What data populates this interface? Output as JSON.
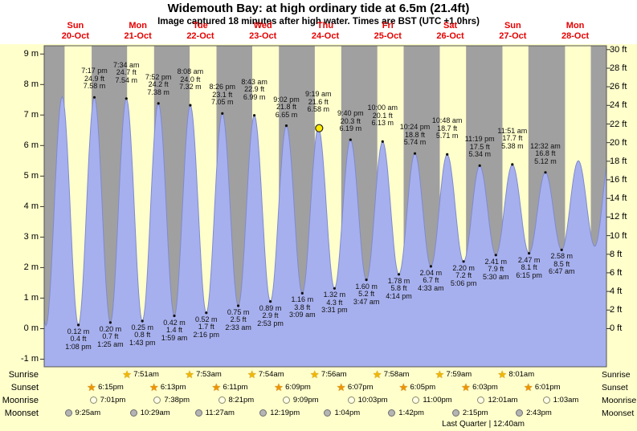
{
  "header": {
    "title": "Widemouth Bay: at high  ordinary tide at 6.5m (21.4ft)",
    "subtitle": "Image captured 18 minutes after high water. Times are BST (UTC +1.0hrs)"
  },
  "chart_data": {
    "type": "area",
    "title": "Widemouth Bay: at high  ordinary tide at 6.5m (21.4ft)",
    "subtitle": "Image captured 18 minutes after high water. Times are BST (UTC +1.0hrs)",
    "days": [
      {
        "name": "Sun",
        "date": "20-Oct"
      },
      {
        "name": "Mon",
        "date": "21-Oct"
      },
      {
        "name": "Tue",
        "date": "22-Oct"
      },
      {
        "name": "Wed",
        "date": "23-Oct"
      },
      {
        "name": "Thu",
        "date": "24-Oct"
      },
      {
        "name": "Fri",
        "date": "25-Oct"
      },
      {
        "name": "Sat",
        "date": "26-Oct"
      },
      {
        "name": "Sun",
        "date": "27-Oct"
      },
      {
        "name": "Mon",
        "date": "28-Oct"
      }
    ],
    "y_axis_left": {
      "unit": "m",
      "ticks": [
        9,
        8,
        7,
        6,
        5,
        4,
        3,
        2,
        1,
        0,
        -1
      ]
    },
    "y_axis_right": {
      "unit": "ft",
      "ticks": [
        30,
        28,
        26,
        24,
        22,
        20,
        18,
        16,
        14,
        12,
        10,
        8,
        6,
        4,
        2,
        0
      ]
    },
    "high_tides": [
      {
        "day": 0,
        "time": "7:17 pm",
        "ft": 24.9,
        "m": 7.58
      },
      {
        "day": 1,
        "time": "7:34 am",
        "ft": 24.7,
        "m": 7.54
      },
      {
        "day": 1,
        "time": "7:52 pm",
        "ft": 24.2,
        "m": 7.38
      },
      {
        "day": 2,
        "time": "8:08 am",
        "ft": 24.0,
        "m": 7.32
      },
      {
        "day": 2,
        "time": "8:26 pm",
        "ft": 23.1,
        "m": 7.05
      },
      {
        "day": 3,
        "time": "8:43 am",
        "ft": 22.9,
        "m": 6.99
      },
      {
        "day": 3,
        "time": "9:02 pm",
        "ft": 21.8,
        "m": 6.65
      },
      {
        "day": 4,
        "time": "9:19 am",
        "ft": 21.6,
        "m": 6.58
      },
      {
        "day": 4,
        "time": "9:40 pm",
        "ft": 20.3,
        "m": 6.19
      },
      {
        "day": 5,
        "time": "10:00 am",
        "ft": 20.1,
        "m": 6.13
      },
      {
        "day": 5,
        "time": "10:24 pm",
        "ft": 18.8,
        "m": 5.74
      },
      {
        "day": 6,
        "time": "10:48 am",
        "ft": 18.7,
        "m": 5.71
      },
      {
        "day": 6,
        "time": "11:19 pm",
        "ft": 17.5,
        "m": 5.34
      },
      {
        "day": 7,
        "time": "11:51 am",
        "ft": 17.7,
        "m": 5.38
      },
      {
        "day": 8,
        "time": "12:32 am",
        "ft": 16.8,
        "m": 5.12
      }
    ],
    "low_tides": [
      {
        "day": 0,
        "time": "1:08 pm",
        "ft": 0.4,
        "m": 0.12
      },
      {
        "day": 1,
        "time": "1:25 am",
        "ft": 0.7,
        "m": 0.2
      },
      {
        "day": 1,
        "time": "1:43 pm",
        "ft": 0.8,
        "m": 0.25
      },
      {
        "day": 2,
        "time": "1:59 am",
        "ft": 1.4,
        "m": 0.42
      },
      {
        "day": 2,
        "time": "2:16 pm",
        "ft": 1.7,
        "m": 0.52
      },
      {
        "day": 3,
        "time": "2:33 am",
        "ft": 2.5,
        "m": 0.75
      },
      {
        "day": 3,
        "time": "2:53 pm",
        "ft": 2.9,
        "m": 0.89
      },
      {
        "day": 4,
        "time": "3:09 am",
        "ft": 3.8,
        "m": 1.16
      },
      {
        "day": 4,
        "time": "3:31 pm",
        "ft": 4.3,
        "m": 1.32
      },
      {
        "day": 5,
        "time": "3:47 am",
        "ft": 5.2,
        "m": 1.6
      },
      {
        "day": 5,
        "time": "4:14 pm",
        "ft": 5.8,
        "m": 1.78
      },
      {
        "day": 6,
        "time": "4:33 am",
        "ft": 6.7,
        "m": 2.04
      },
      {
        "day": 6,
        "time": "5:06 pm",
        "ft": 7.2,
        "m": 2.2
      },
      {
        "day": 7,
        "time": "5:30 am",
        "ft": 7.9,
        "m": 2.41
      },
      {
        "day": 7,
        "time": "6:15 pm",
        "ft": 8.1,
        "m": 2.47
      },
      {
        "day": 8,
        "time": "6:47 am",
        "ft": 8.5,
        "m": 2.58
      }
    ],
    "current_marker": {
      "day": 4,
      "time": "9:37 am",
      "height_m": 6.57
    },
    "night_bands": [
      [
        0,
        7.83
      ],
      [
        18.25,
        31.85
      ],
      [
        42.22,
        55.88
      ],
      [
        66.18,
        79.9
      ],
      [
        90.15,
        103.93
      ],
      [
        114.12,
        127.97
      ],
      [
        138.08,
        151.98
      ],
      [
        162.05,
        176.02
      ],
      [
        186.02,
        200.08
      ],
      [
        209.97,
        216
      ]
    ],
    "curve_edges": [
      {
        "t": -5.4,
        "m": 7.6
      },
      {
        "t": 0.67,
        "m": 0.1
      },
      {
        "t": 6.92,
        "m": 7.6
      },
      {
        "t": 205.2,
        "m": 5.5
      },
      {
        "t": 211.5,
        "m": 2.7
      },
      {
        "t": 217.7,
        "m": 5.9
      }
    ],
    "colors": {
      "day_bg": "#ffffcc",
      "night_bg": "#a0a0a0",
      "tide_fill": "#a7b0ee",
      "tide_edge": "#7f8ad0",
      "day_label": "#e60000",
      "marker": "#ffe800",
      "frame": "#555555"
    }
  },
  "astro": {
    "rows": [
      {
        "label": "Sunrise",
        "icon": "sunrise-star",
        "color": "#f2b700",
        "entries": [
          {
            "day": 1,
            "time": "7:51am"
          },
          {
            "day": 2,
            "time": "7:53am"
          },
          {
            "day": 3,
            "time": "7:54am"
          },
          {
            "day": 4,
            "time": "7:56am"
          },
          {
            "day": 5,
            "time": "7:58am"
          },
          {
            "day": 6,
            "time": "7:59am"
          },
          {
            "day": 7,
            "time": "8:01am"
          }
        ]
      },
      {
        "label": "Sunset",
        "icon": "sunset-star",
        "color": "#ef9400",
        "entries": [
          {
            "day": 0,
            "time": "6:15pm"
          },
          {
            "day": 1,
            "time": "6:13pm"
          },
          {
            "day": 2,
            "time": "6:11pm"
          },
          {
            "day": 3,
            "time": "6:09pm"
          },
          {
            "day": 4,
            "time": "6:07pm"
          },
          {
            "day": 5,
            "time": "6:05pm"
          },
          {
            "day": 6,
            "time": "6:03pm"
          },
          {
            "day": 7,
            "time": "6:01pm"
          }
        ]
      },
      {
        "label": "Moonrise",
        "icon": "moonrise-circle",
        "color": "#fffde8",
        "entries": [
          {
            "day": 0,
            "time": "7:01pm"
          },
          {
            "day": 1,
            "time": "7:38pm"
          },
          {
            "day": 2,
            "time": "8:21pm"
          },
          {
            "day": 3,
            "time": "9:09pm"
          },
          {
            "day": 4,
            "time": "10:03pm"
          },
          {
            "day": 5,
            "time": "11:00pm"
          },
          {
            "day": 7,
            "time": "12:01am"
          },
          {
            "day": 8,
            "time": "1:03am"
          }
        ]
      },
      {
        "label": "Moonset",
        "icon": "moonset-circle",
        "color": "#b5b5b5",
        "entries": [
          {
            "day": 0,
            "time": "9:25am"
          },
          {
            "day": 1,
            "time": "10:29am"
          },
          {
            "day": 2,
            "time": "11:27am"
          },
          {
            "day": 3,
            "time": "12:19pm"
          },
          {
            "day": 4,
            "time": "1:04pm"
          },
          {
            "day": 5,
            "time": "1:42pm"
          },
          {
            "day": 6,
            "time": "2:15pm"
          },
          {
            "day": 7,
            "time": "2:43pm"
          }
        ]
      }
    ],
    "phase": {
      "label": "Last Quarter | 12:40am",
      "day": 7,
      "time": "12:40am"
    }
  }
}
